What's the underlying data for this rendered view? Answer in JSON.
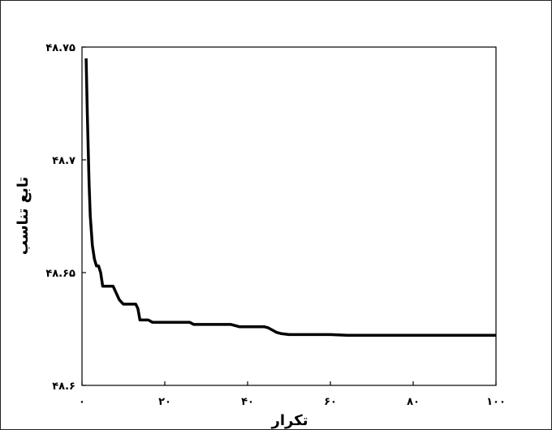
{
  "chart_data": {
    "type": "line",
    "title": "",
    "xlabel": "تکرار",
    "ylabel": "تابع تناسب",
    "xlim": [
      0,
      100
    ],
    "ylim": [
      48.6,
      48.75
    ],
    "grid": false,
    "x_ticks": [
      {
        "value": 0,
        "label": "۰"
      },
      {
        "value": 20,
        "label": "۲۰"
      },
      {
        "value": 40,
        "label": "۴۰"
      },
      {
        "value": 60,
        "label": "۶۰"
      },
      {
        "value": 80,
        "label": "۸۰"
      },
      {
        "value": 100,
        "label": "۱۰۰"
      }
    ],
    "y_ticks": [
      {
        "value": 48.6,
        "label": "۴۸.۶"
      },
      {
        "value": 48.65,
        "label": "۴۸.۶۵"
      },
      {
        "value": 48.7,
        "label": "۴۸.۷"
      },
      {
        "value": 48.75,
        "label": "۴۸.۷۵"
      }
    ],
    "series": [
      {
        "color": "#000000",
        "x": [
          1,
          1.3,
          1.7,
          2,
          2.5,
          3,
          3.5,
          4,
          4.5,
          5,
          6,
          7,
          7.5,
          8,
          9,
          10,
          11,
          12,
          13,
          13.5,
          14,
          15,
          16,
          17,
          20,
          25,
          26,
          27,
          30,
          35,
          36,
          38,
          40,
          44,
          45,
          46,
          47,
          48,
          50,
          60,
          64,
          65,
          70,
          80,
          90,
          100
        ],
        "y": [
          48.745,
          48.72,
          48.69,
          48.675,
          48.662,
          48.656,
          48.653,
          48.653,
          48.65,
          48.644,
          48.644,
          48.644,
          48.644,
          48.642,
          48.638,
          48.636,
          48.636,
          48.636,
          48.636,
          48.634,
          48.629,
          48.629,
          48.629,
          48.628,
          48.628,
          48.628,
          48.628,
          48.627,
          48.627,
          48.627,
          48.627,
          48.626,
          48.626,
          48.626,
          48.6255,
          48.6245,
          48.6235,
          48.623,
          48.6225,
          48.6225,
          48.6222,
          48.6222,
          48.6222,
          48.6222,
          48.6222,
          48.6222
        ]
      }
    ]
  }
}
